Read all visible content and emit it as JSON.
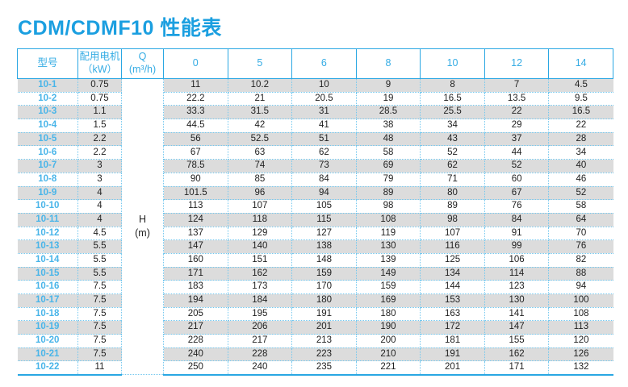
{
  "page": {
    "title": "CDM/CDMF10 性能表"
  },
  "colors": {
    "title_blue": "#1b9fe0",
    "header_text_blue": "#35ace4",
    "model_text_blue": "#49b5e9",
    "solid_border_blue": "#2aa7e3",
    "dotted_border_blue": "#74c8ef",
    "stripe_gray": "#dcdcdc",
    "value_text": "#1f1f1f"
  },
  "table": {
    "header": {
      "model": "型号",
      "motor_line1": "配用电机",
      "motor_line2": "（kW）",
      "q_line1": "Q",
      "q_line2": "(m³/h)"
    },
    "flow_headers": [
      "0",
      "5",
      "6",
      "8",
      "10",
      "12",
      "14"
    ],
    "head_symbol": "H",
    "head_unit": "(m)",
    "rows": [
      {
        "model": "10-1",
        "power": "0.75",
        "values": [
          "11",
          "10.2",
          "10",
          "9",
          "8",
          "7",
          "4.5"
        ]
      },
      {
        "model": "10-2",
        "power": "0.75",
        "values": [
          "22.2",
          "21",
          "20.5",
          "19",
          "16.5",
          "13.5",
          "9.5"
        ]
      },
      {
        "model": "10-3",
        "power": "1.1",
        "values": [
          "33.3",
          "31.5",
          "31",
          "28.5",
          "25.5",
          "22",
          "16.5"
        ]
      },
      {
        "model": "10-4",
        "power": "1.5",
        "values": [
          "44.5",
          "42",
          "41",
          "38",
          "34",
          "29",
          "22"
        ]
      },
      {
        "model": "10-5",
        "power": "2.2",
        "values": [
          "56",
          "52.5",
          "51",
          "48",
          "43",
          "37",
          "28"
        ]
      },
      {
        "model": "10-6",
        "power": "2.2",
        "values": [
          "67",
          "63",
          "62",
          "58",
          "52",
          "44",
          "34"
        ]
      },
      {
        "model": "10-7",
        "power": "3",
        "values": [
          "78.5",
          "74",
          "73",
          "69",
          "62",
          "52",
          "40"
        ]
      },
      {
        "model": "10-8",
        "power": "3",
        "values": [
          "90",
          "85",
          "84",
          "79",
          "71",
          "60",
          "46"
        ]
      },
      {
        "model": "10-9",
        "power": "4",
        "values": [
          "101.5",
          "96",
          "94",
          "89",
          "80",
          "67",
          "52"
        ]
      },
      {
        "model": "10-10",
        "power": "4",
        "values": [
          "113",
          "107",
          "105",
          "98",
          "89",
          "76",
          "58"
        ]
      },
      {
        "model": "10-11",
        "power": "4",
        "values": [
          "124",
          "118",
          "115",
          "108",
          "98",
          "84",
          "64"
        ]
      },
      {
        "model": "10-12",
        "power": "4.5",
        "values": [
          "137",
          "129",
          "127",
          "119",
          "107",
          "91",
          "70"
        ]
      },
      {
        "model": "10-13",
        "power": "5.5",
        "values": [
          "147",
          "140",
          "138",
          "130",
          "116",
          "99",
          "76"
        ]
      },
      {
        "model": "10-14",
        "power": "5.5",
        "values": [
          "160",
          "151",
          "148",
          "139",
          "125",
          "106",
          "82"
        ]
      },
      {
        "model": "10-15",
        "power": "5.5",
        "values": [
          "171",
          "162",
          "159",
          "149",
          "134",
          "114",
          "88"
        ]
      },
      {
        "model": "10-16",
        "power": "7.5",
        "values": [
          "183",
          "173",
          "170",
          "159",
          "144",
          "123",
          "94"
        ]
      },
      {
        "model": "10-17",
        "power": "7.5",
        "values": [
          "194",
          "184",
          "180",
          "169",
          "153",
          "130",
          "100"
        ]
      },
      {
        "model": "10-18",
        "power": "7.5",
        "values": [
          "205",
          "195",
          "191",
          "180",
          "163",
          "141",
          "108"
        ]
      },
      {
        "model": "10-19",
        "power": "7.5",
        "values": [
          "217",
          "206",
          "201",
          "190",
          "172",
          "147",
          "113"
        ]
      },
      {
        "model": "10-20",
        "power": "7.5",
        "values": [
          "228",
          "217",
          "213",
          "200",
          "181",
          "155",
          "120"
        ]
      },
      {
        "model": "10-21",
        "power": "7.5",
        "values": [
          "240",
          "228",
          "223",
          "210",
          "191",
          "162",
          "126"
        ]
      },
      {
        "model": "10-22",
        "power": "11",
        "values": [
          "250",
          "240",
          "235",
          "221",
          "201",
          "171",
          "132"
        ]
      }
    ]
  }
}
